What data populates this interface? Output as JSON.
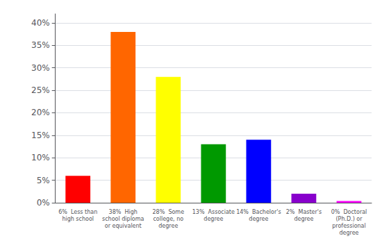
{
  "chart_data": {
    "type": "bar",
    "categories": [
      "6%  Less than\nhigh school",
      "38%  High\nschool diploma\nor equivalent",
      "28%  Some\ncollege, no\ndegree",
      "13%  Associate\ndegree",
      "14%  Bachelor's\ndegree",
      "2%  Master's\ndegree",
      "0%  Doctoral\n(Ph.D.) or\nprofessional\ndegree"
    ],
    "values": [
      6,
      38,
      28,
      13,
      14,
      2,
      0.4
    ],
    "colors": [
      "#ff0000",
      "#ff6600",
      "#ffff00",
      "#009900",
      "#0000ff",
      "#8800cc",
      "#ff00ff"
    ],
    "ylim": [
      0,
      42
    ],
    "yticks": [
      {
        "value": 0,
        "label": "0%"
      },
      {
        "value": 5,
        "label": "5%"
      },
      {
        "value": 10,
        "label": "10%"
      },
      {
        "value": 15,
        "label": "15%"
      },
      {
        "value": 20,
        "label": "20%"
      },
      {
        "value": 25,
        "label": "25%"
      },
      {
        "value": 30,
        "label": "30%"
      },
      {
        "value": 35,
        "label": "35%"
      },
      {
        "value": 40,
        "label": "40%"
      }
    ],
    "grid": true
  }
}
